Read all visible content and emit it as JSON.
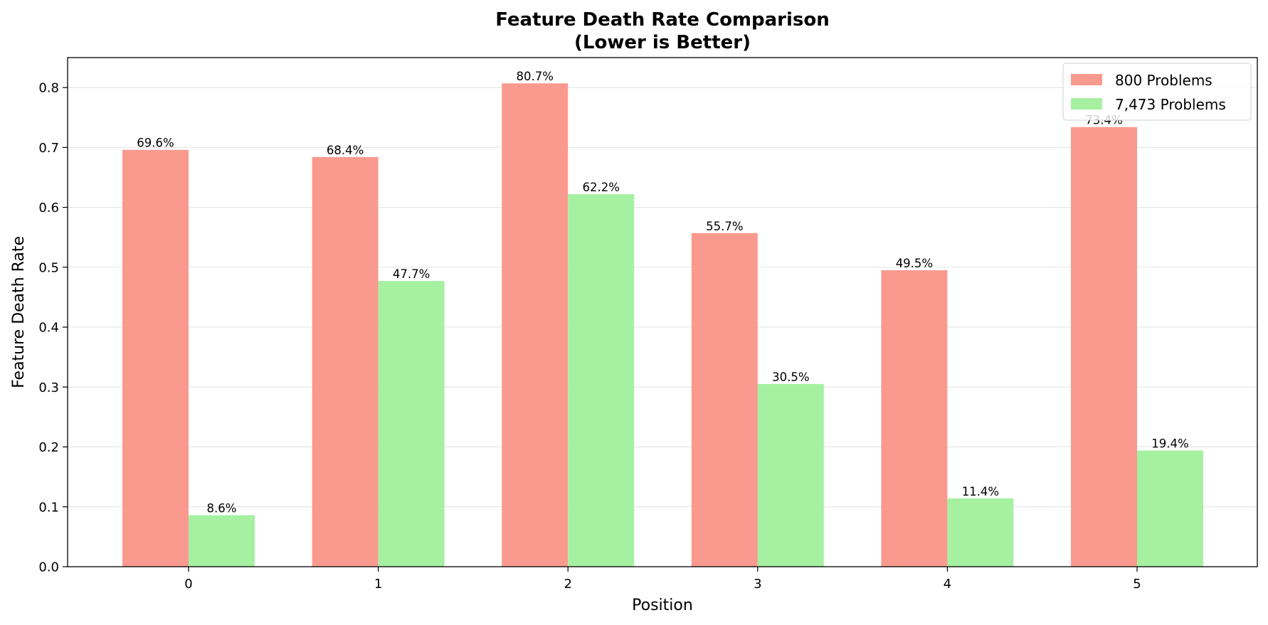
{
  "chart_data": {
    "type": "bar",
    "title": "Feature Death Rate Comparison",
    "subtitle": "(Lower is Better)",
    "xlabel": "Position",
    "ylabel": "Feature Death Rate",
    "categories": [
      "0",
      "1",
      "2",
      "3",
      "4",
      "5"
    ],
    "series": [
      {
        "name": "800 Problems",
        "color": "#fa9a8e",
        "values": [
          0.696,
          0.684,
          0.807,
          0.557,
          0.495,
          0.734
        ],
        "labels": [
          "69.6%",
          "68.4%",
          "80.7%",
          "55.7%",
          "49.5%",
          "73.4%"
        ]
      },
      {
        "name": "7,473 Problems",
        "color": "#a6f0a2",
        "values": [
          0.086,
          0.477,
          0.622,
          0.305,
          0.114,
          0.194
        ],
        "labels": [
          "8.6%",
          "47.7%",
          "62.2%",
          "30.5%",
          "11.4%",
          "19.4%"
        ]
      }
    ],
    "ylim": [
      0,
      0.85
    ],
    "yticks": [
      0.0,
      0.1,
      0.2,
      0.3,
      0.4,
      0.5,
      0.6,
      0.7,
      0.8
    ],
    "ytick_labels": [
      "0.0",
      "0.1",
      "0.2",
      "0.3",
      "0.4",
      "0.5",
      "0.6",
      "0.7",
      "0.8"
    ],
    "grid": "y",
    "legend_position": "top-right"
  }
}
